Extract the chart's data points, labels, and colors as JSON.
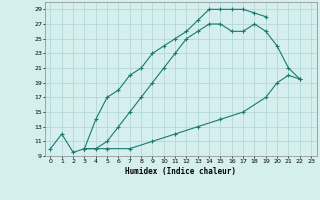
{
  "xlabel": "Humidex (Indice chaleur)",
  "bg_color": "#d5eeee",
  "grid_color": "#aed4d4",
  "line_color": "#1a7a6e",
  "xlim": [
    -0.5,
    23.5
  ],
  "ylim": [
    9,
    30
  ],
  "xticks": [
    0,
    1,
    2,
    3,
    4,
    5,
    6,
    7,
    8,
    9,
    10,
    11,
    12,
    13,
    14,
    15,
    16,
    17,
    18,
    19,
    20,
    21,
    22,
    23
  ],
  "yticks": [
    9,
    11,
    13,
    15,
    17,
    19,
    21,
    23,
    25,
    27,
    29
  ],
  "line1_x": [
    0,
    1,
    2,
    3,
    4,
    5,
    6,
    7,
    8,
    9,
    10,
    11,
    12,
    13,
    14,
    15,
    16,
    17,
    18,
    19
  ],
  "line1_y": [
    10,
    12,
    9.5,
    10,
    14,
    17,
    18,
    20,
    21,
    23,
    24,
    25,
    26,
    27.5,
    29,
    29,
    29,
    29,
    28.5,
    28
  ],
  "line2_x": [
    3,
    4,
    5,
    6,
    7,
    8,
    9,
    10,
    11,
    12,
    13,
    14,
    15,
    16,
    17,
    18,
    19,
    20,
    21,
    22
  ],
  "line2_y": [
    10,
    10,
    11,
    13,
    15,
    17,
    19,
    21,
    23,
    25,
    26,
    27,
    27,
    26,
    26,
    27,
    26,
    24,
    21,
    19.5
  ],
  "line3_x": [
    3,
    5,
    7,
    9,
    11,
    13,
    15,
    17,
    19,
    20,
    21,
    22
  ],
  "line3_y": [
    10,
    10,
    10,
    11,
    12,
    13,
    14,
    15,
    17,
    19,
    20,
    19.5
  ]
}
